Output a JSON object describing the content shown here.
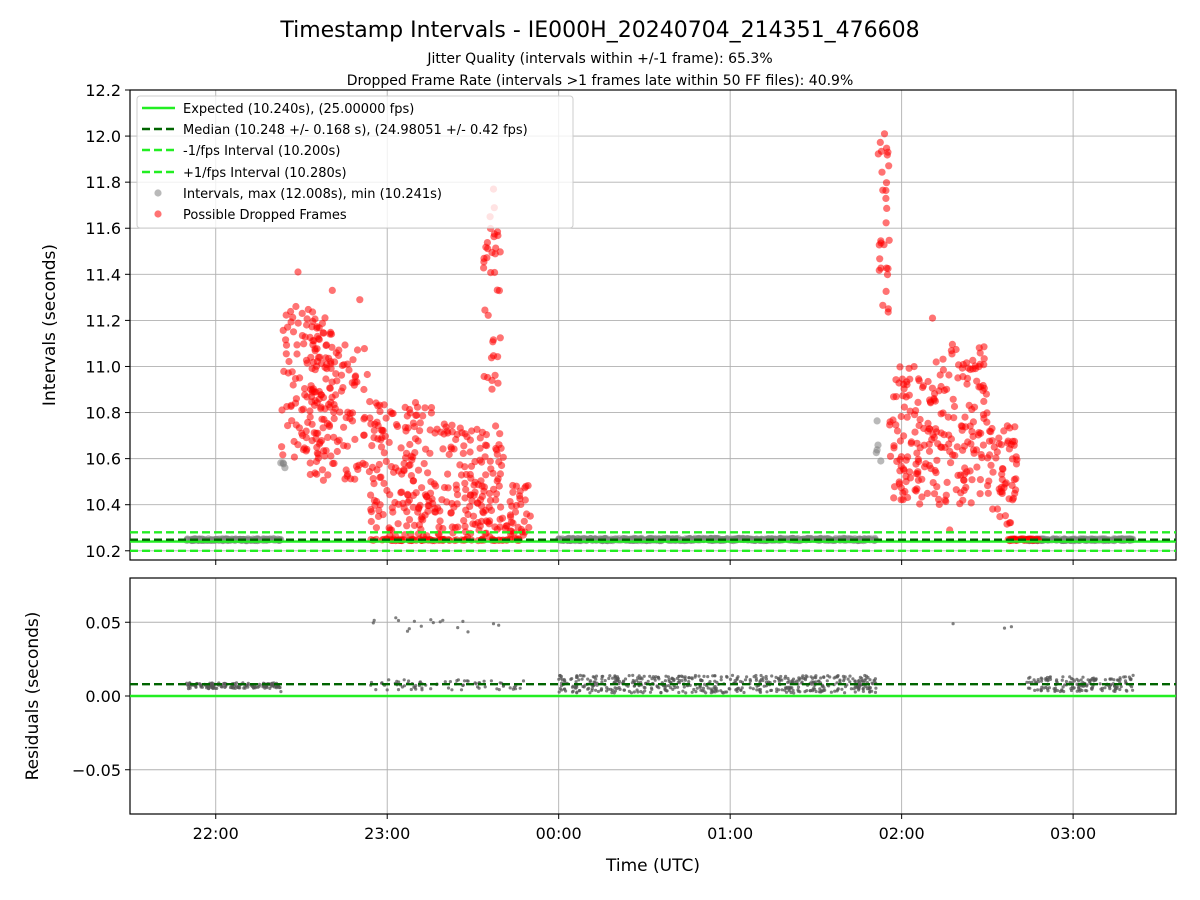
{
  "figure": {
    "title": "Timestamp Intervals - IE000H_20240704_214351_476608",
    "subtitle_1": "Jitter Quality (intervals within +/-1 frame): 65.3%",
    "subtitle_2": "Dropped Frame Rate (intervals >1 frames late within 50 FF files): 40.9%"
  },
  "colors": {
    "expected": "#22ee22",
    "median": "#006400",
    "fps_bounds": "#22ee22",
    "interval_points": "#808080",
    "dropped_points": "#ff0000",
    "residual_points": "#555555",
    "grid": "#b0b0b0"
  },
  "chart_data": [
    {
      "type": "scatter",
      "name": "intervals-panel",
      "xlabel": "",
      "ylabel": "Intervals (seconds)",
      "x_unit": "hours (UTC, continuing past midnight as 24+)",
      "xlim": [
        21.5,
        27.6
      ],
      "ylim": [
        10.16,
        12.2
      ],
      "yticks": [
        10.2,
        10.4,
        10.6,
        10.8,
        11.0,
        11.2,
        11.4,
        11.6,
        11.8,
        12.0,
        12.2
      ],
      "ytick_labels": [
        "10.2",
        "10.4",
        "10.6",
        "10.8",
        "11.0",
        "11.2",
        "11.4",
        "11.6",
        "11.8",
        "12.0",
        "12.2"
      ],
      "grid": true,
      "legend_position": "top-left",
      "reference_lines": [
        {
          "label": "Expected (10.240s), (25.00000 fps)",
          "y": 10.24,
          "style": "solid",
          "color_key": "expected"
        },
        {
          "label": "Median (10.248 +/- 0.168 s), (24.98051 +/- 0.42 fps)",
          "y": 10.248,
          "style": "dashed",
          "color_key": "median"
        },
        {
          "label": "-1/fps Interval (10.200s)",
          "y": 10.2,
          "style": "dashed",
          "color_key": "fps_bounds"
        },
        {
          "label": "+1/fps Interval (10.280s)",
          "y": 10.28,
          "style": "dashed",
          "color_key": "fps_bounds"
        }
      ],
      "point_series": [
        {
          "label": "Intervals, max (12.008s), min (10.241s)",
          "color_key": "interval_points"
        },
        {
          "label": "Possible Dropped Frames",
          "color_key": "dropped_points"
        }
      ],
      "clusters": [
        {
          "series": 0,
          "x_range": [
            21.83,
            22.38
          ],
          "y_range": [
            10.244,
            10.252
          ],
          "count": 140,
          "seed": 11
        },
        {
          "series": 0,
          "x_range": [
            24.0,
            25.85
          ],
          "y_range": [
            10.244,
            10.254
          ],
          "count": 500,
          "seed": 12
        },
        {
          "series": 0,
          "x_range": [
            26.72,
            27.35
          ],
          "y_range": [
            10.244,
            10.252
          ],
          "count": 150,
          "seed": 13
        },
        {
          "series": 0,
          "x_range": [
            22.37,
            22.42
          ],
          "y_range": [
            10.56,
            10.61
          ],
          "count": 4,
          "seed": 14
        },
        {
          "series": 0,
          "x_range": [
            25.85,
            25.88
          ],
          "y_range": [
            10.44,
            10.93
          ],
          "count": 5,
          "seed": 15
        },
        {
          "series": 1,
          "x_range": [
            22.38,
            22.7
          ],
          "y_range": [
            10.6,
            11.28
          ],
          "count": 120,
          "seed": 21
        },
        {
          "series": 1,
          "x_range": [
            22.55,
            22.9
          ],
          "y_range": [
            10.5,
            11.15
          ],
          "count": 110,
          "seed": 22
        },
        {
          "series": 1,
          "x_range": [
            22.9,
            23.3
          ],
          "y_range": [
            10.26,
            10.85
          ],
          "count": 160,
          "seed": 23
        },
        {
          "series": 1,
          "x_range": [
            23.3,
            23.68
          ],
          "y_range": [
            10.26,
            10.75
          ],
          "count": 140,
          "seed": 24
        },
        {
          "series": 1,
          "x_range": [
            23.68,
            23.84
          ],
          "y_range": [
            10.26,
            10.5
          ],
          "count": 35,
          "seed": 25
        },
        {
          "series": 1,
          "x_range": [
            23.56,
            23.66
          ],
          "y_range": [
            10.9,
            11.7
          ],
          "count": 35,
          "seed": 26
        },
        {
          "series": 1,
          "x_range": [
            22.9,
            23.8
          ],
          "y_range": [
            10.244,
            10.252
          ],
          "count": 80,
          "seed": 27
        },
        {
          "series": 1,
          "x_range": [
            25.86,
            25.93
          ],
          "y_range": [
            11.2,
            12.0
          ],
          "count": 28,
          "seed": 28
        },
        {
          "series": 1,
          "x_range": [
            25.93,
            26.2
          ],
          "y_range": [
            10.4,
            11.0
          ],
          "count": 110,
          "seed": 29
        },
        {
          "series": 1,
          "x_range": [
            26.2,
            26.5
          ],
          "y_range": [
            10.4,
            11.1
          ],
          "count": 120,
          "seed": 30
        },
        {
          "series": 1,
          "x_range": [
            26.5,
            26.68
          ],
          "y_range": [
            10.3,
            10.75
          ],
          "count": 60,
          "seed": 31
        },
        {
          "series": 1,
          "x_range": [
            26.62,
            26.8
          ],
          "y_range": [
            10.244,
            10.252
          ],
          "count": 40,
          "seed": 32
        }
      ],
      "points": [
        {
          "series": 1,
          "x": 22.48,
          "y": 11.41
        },
        {
          "series": 1,
          "x": 22.68,
          "y": 11.33
        },
        {
          "series": 1,
          "x": 22.84,
          "y": 11.29
        },
        {
          "series": 1,
          "x": 23.62,
          "y": 11.77
        },
        {
          "series": 1,
          "x": 23.6,
          "y": 11.65
        },
        {
          "series": 1,
          "x": 25.9,
          "y": 12.01
        },
        {
          "series": 1,
          "x": 25.92,
          "y": 11.93
        },
        {
          "series": 1,
          "x": 26.18,
          "y": 11.21
        },
        {
          "series": 1,
          "x": 26.28,
          "y": 10.29
        }
      ]
    },
    {
      "type": "scatter",
      "name": "residuals-panel",
      "xlabel": "Time (UTC)",
      "ylabel": "Residuals (seconds)",
      "x_unit": "hours (UTC, continuing past midnight as 24+)",
      "xlim": [
        21.5,
        27.6
      ],
      "ylim": [
        -0.08,
        0.08
      ],
      "yticks": [
        -0.05,
        0.0,
        0.05
      ],
      "ytick_labels": [
        "−0.05",
        "0.00",
        "0.05"
      ],
      "xticks": [
        22,
        23,
        24,
        25,
        26,
        27
      ],
      "xtick_labels": [
        "22:00",
        "23:00",
        "00:00",
        "01:00",
        "02:00",
        "03:00"
      ],
      "grid": true,
      "reference_lines": [
        {
          "y": 0.0,
          "style": "solid",
          "color_key": "expected"
        },
        {
          "y": 0.008,
          "style": "dashed",
          "color_key": "median"
        }
      ],
      "clusters": [
        {
          "x_range": [
            21.83,
            22.38
          ],
          "y_range": [
            0.005,
            0.009
          ],
          "count": 140,
          "seed": 41
        },
        {
          "x_range": [
            22.9,
            23.8
          ],
          "y_range": [
            0.004,
            0.011
          ],
          "count": 70,
          "seed": 42
        },
        {
          "x_range": [
            24.0,
            25.85
          ],
          "y_range": [
            0.002,
            0.014
          ],
          "count": 520,
          "seed": 43
        },
        {
          "x_range": [
            26.72,
            27.35
          ],
          "y_range": [
            0.003,
            0.013
          ],
          "count": 160,
          "seed": 44
        },
        {
          "x_range": [
            22.9,
            23.55
          ],
          "y_range": [
            0.043,
            0.052
          ],
          "count": 14,
          "seed": 45
        }
      ],
      "points": [
        {
          "x": 22.38,
          "y": 0.003
        },
        {
          "x": 23.05,
          "y": 0.053
        },
        {
          "x": 23.65,
          "y": 0.048
        },
        {
          "x": 23.62,
          "y": 0.049
        },
        {
          "x": 26.3,
          "y": 0.049
        },
        {
          "x": 26.6,
          "y": 0.046
        },
        {
          "x": 26.64,
          "y": 0.047
        },
        {
          "x": 27.35,
          "y": 0.014
        }
      ]
    }
  ]
}
